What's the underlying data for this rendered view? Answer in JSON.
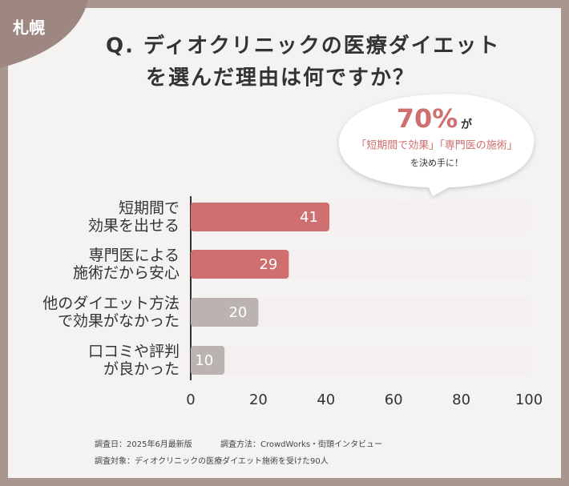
{
  "tag": "札幌",
  "chart_data": {
    "type": "bar",
    "orientation": "horizontal",
    "title": [
      "Q. ディオクリニックの医療ダイエット",
      "を選んだ理由は何ですか？"
    ],
    "annotation": {
      "highlight": "70%",
      "suffix": "が",
      "line2": "「短期間で効果」「専門医の施術」",
      "line3": "を決め手に！"
    },
    "categories": [
      "短期間で\n効果を出せる",
      "専門医による\n施術だから安心",
      "他のダイエット方法\nで効果がなかった",
      "口コミや評判\nが良かった"
    ],
    "values": [
      41,
      29,
      20,
      10
    ],
    "colors": [
      "#cf6f6f",
      "#cf6f6f",
      "#bab3b1",
      "#bab3b1"
    ],
    "track_color": "#f6efef",
    "xlim": [
      0,
      100
    ],
    "xticks": [
      0,
      20,
      40,
      60,
      80,
      100
    ],
    "grid": false
  },
  "notes": [
    "調査日：2025年6月最新版",
    "調査方法：CrowdWorks・街頭インタビュー",
    "調査対象：ディオクリニックの医療ダイエット施術を受けた90人"
  ]
}
